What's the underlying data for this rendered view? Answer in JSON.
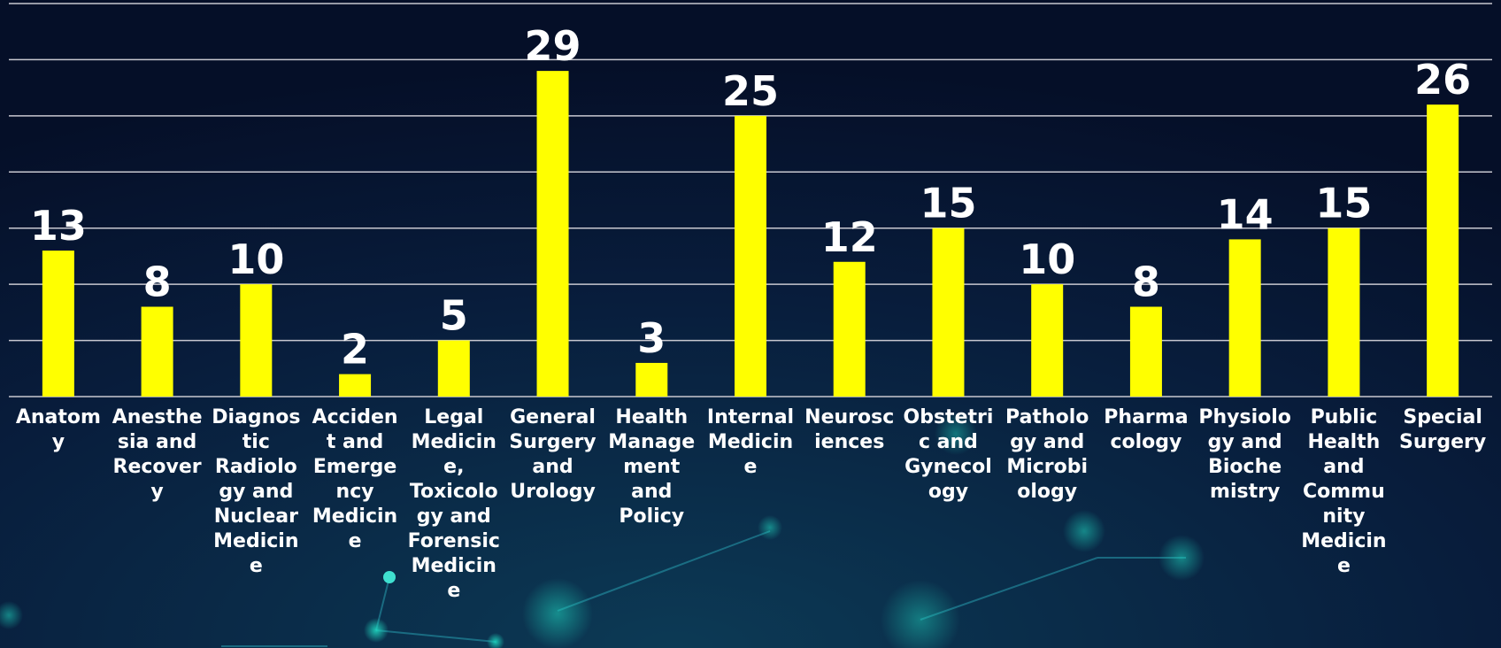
{
  "chart_data": {
    "type": "bar",
    "categories": [
      "Anatomy",
      "Anesthesia and Recovery",
      "Diagnostic Radiology and Nuclear Medicine",
      "Accident and Emergency Medicine",
      "Legal Medicine, Toxicology and Forensic Medicine",
      "General Surgery and Urology",
      "Health Management and Policy",
      "Internal Medicine",
      "Neurosciences",
      "Obstetric and Gynecology",
      "Pathology and Microbiology",
      "Pharmacology",
      "Physiology and Biochemistry",
      "Public Health and Community Medicine",
      "Special Surgery"
    ],
    "values": [
      13,
      8,
      10,
      2,
      5,
      29,
      3,
      25,
      12,
      15,
      10,
      8,
      14,
      15,
      26
    ],
    "color": "#ffff00",
    "ylim": [
      0,
      35
    ],
    "yticks": [
      0,
      5,
      10,
      15,
      20,
      25,
      30,
      35
    ],
    "grid": true
  }
}
